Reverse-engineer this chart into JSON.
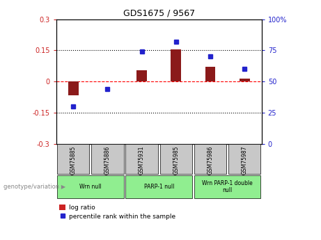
{
  "title": "GDS1675 / 9567",
  "samples": [
    "GSM75885",
    "GSM75886",
    "GSM75931",
    "GSM75985",
    "GSM75986",
    "GSM75987"
  ],
  "log_ratio": [
    -0.065,
    0.0,
    0.055,
    0.155,
    0.07,
    0.015
  ],
  "percentile_rank": [
    30,
    44,
    74,
    82,
    70,
    60
  ],
  "ylim_left": [
    -0.3,
    0.3
  ],
  "ylim_right": [
    0,
    100
  ],
  "yticks_left": [
    -0.3,
    -0.15,
    0,
    0.15,
    0.3
  ],
  "yticks_right": [
    0,
    25,
    50,
    75,
    100
  ],
  "bar_color": "#8B1A1A",
  "dot_color": "#2222CC",
  "groups": [
    {
      "label": "Wrn null",
      "color": "#90EE90",
      "start": 0,
      "end": 2
    },
    {
      "label": "PARP-1 null",
      "color": "#90EE90",
      "start": 2,
      "end": 4
    },
    {
      "label": "Wrn PARP-1 double\nnull",
      "color": "#90EE90",
      "start": 4,
      "end": 6
    }
  ],
  "legend_bar_color": "#CC2222",
  "legend_dot_color": "#2222CC",
  "legend_bar_label": "log ratio",
  "legend_dot_label": "percentile rank within the sample",
  "xlabel_genotype": "genotype/variation",
  "background_color": "#ffffff",
  "tick_label_color_left": "#CC2222",
  "tick_label_color_right": "#2222CC",
  "sample_box_color": "#C8C8C8",
  "bar_width": 0.3
}
